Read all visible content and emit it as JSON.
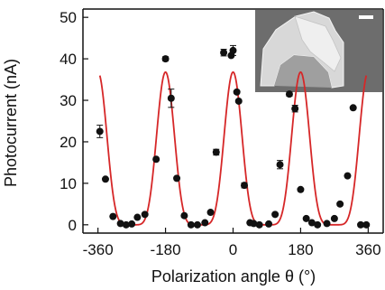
{
  "chart_data": {
    "type": "scatter",
    "xlabel": "Polarization angle θ (°)",
    "ylabel": "Photocurrent (nA)",
    "xlim": [
      -400,
      400
    ],
    "ylim": [
      -2,
      52
    ],
    "x_ticks": [
      -360,
      -180,
      0,
      180,
      360
    ],
    "x_tick_labels": [
      "-360",
      "-180",
      "0",
      "180",
      "360"
    ],
    "y_ticks": [
      0,
      10,
      20,
      30,
      40,
      50
    ],
    "y_tick_labels": [
      "0",
      "10",
      "20",
      "30",
      "40",
      "50"
    ],
    "grid": false,
    "fit_color": "#d62728",
    "marker_color": "#111111",
    "series": [
      {
        "kind": "points",
        "x": [
          -355,
          -340,
          -320,
          -300,
          -285,
          -270,
          -255,
          -235,
          -205,
          -180,
          -165,
          -150,
          -130,
          -112,
          -95,
          -75,
          -60,
          -45,
          -25,
          -5,
          0,
          10,
          15,
          30,
          45,
          55,
          70,
          95,
          112,
          125,
          150,
          165,
          180,
          195,
          210,
          225,
          250,
          270,
          285,
          305,
          320,
          340,
          355
        ],
        "y": [
          22.5,
          11,
          2,
          0.3,
          0,
          0.2,
          1.8,
          2.5,
          15.8,
          40,
          30.5,
          11.2,
          2.2,
          0,
          0,
          0.5,
          3,
          17.5,
          41.5,
          40.8,
          42,
          32,
          29.8,
          9.5,
          0.5,
          0.3,
          0,
          0.2,
          2.5,
          14.5,
          31.5,
          28,
          8.5,
          1.5,
          0.5,
          0,
          0.3,
          1.5,
          5,
          11.8,
          28.2,
          0,
          0
        ],
        "error": [
          1.5,
          0,
          0,
          0,
          0,
          0,
          0,
          0,
          0,
          0.5,
          2.2,
          0,
          0,
          0,
          0,
          0,
          0,
          0.7,
          0.8,
          0,
          1.2,
          0,
          0,
          0.6,
          0,
          0,
          0,
          0,
          0,
          1,
          0.5,
          0.8,
          0,
          0,
          0,
          0,
          0,
          0,
          0,
          0,
          0,
          0,
          0
        ]
      },
      {
        "kind": "fit",
        "x_range": [
          -355,
          355
        ],
        "peak_centers": [
          -180,
          0,
          180
        ],
        "peak_value": 36.8,
        "baseline": 0,
        "exponent": 6
      }
    ],
    "inset": {
      "description_kind": "micrograph",
      "scale_bar": true
    }
  }
}
